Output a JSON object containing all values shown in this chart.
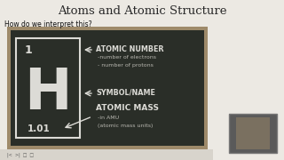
{
  "title": "Atoms and Atomic Structure",
  "subtitle": "How do we interpret this?",
  "bg_color": "#ece9e3",
  "title_color": "#2a2a2a",
  "subtitle_color": "#111111",
  "blackboard_color": "#2a2e28",
  "blackboard_border": "#9e8a6a",
  "chalk_color": "#dcdbd6",
  "chalk_color2": "#b8b7b0",
  "element_symbol": "H",
  "element_number": "1",
  "element_mass": "1.01",
  "label_atomic_number": "ATOMIC NUMBER",
  "label_electrons": "-number of electrons",
  "label_protons": "- number of protons",
  "label_symbol": "SYMBOL/NAME",
  "label_mass": "ATOMIC MASS",
  "label_amu": "-in AMU",
  "label_amu2": "(atomic mass units)",
  "figsize": [
    3.2,
    1.8
  ],
  "dpi": 100
}
